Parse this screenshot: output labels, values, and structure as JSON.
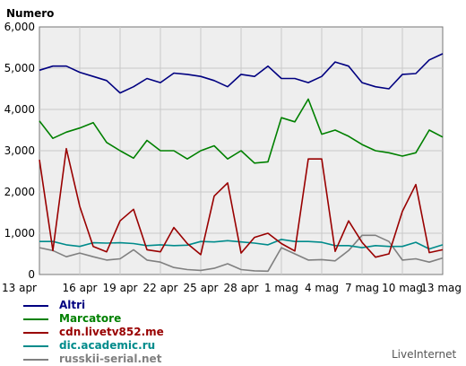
{
  "chart_data": {
    "type": "line",
    "ylabel": "Numero",
    "ylim": [
      0,
      6000
    ],
    "yticks": [
      0,
      1000,
      2000,
      3000,
      4000,
      5000,
      6000
    ],
    "ytick_labels": [
      "0",
      "1,000",
      "2,000",
      "3,000",
      "4,000",
      "5,000",
      "6,000"
    ],
    "x": [
      "13 apr",
      "14 apr",
      "15 apr",
      "16 apr",
      "17 apr",
      "18 apr",
      "19 apr",
      "20 apr",
      "21 apr",
      "22 apr",
      "23 apr",
      "24 apr",
      "25 apr",
      "26 apr",
      "27 apr",
      "28 apr",
      "29 apr",
      "30 apr",
      "1 mag",
      "2 mag",
      "3 mag",
      "4 mag",
      "5 mag",
      "6 mag",
      "7 mag",
      "8 mag",
      "9 mag",
      "10 mag",
      "11 mag",
      "12 mag",
      "13 mag"
    ],
    "xtick_labels": [
      "13 apr",
      "16 apr",
      "19 apr",
      "22 apr",
      "25 apr",
      "28 apr",
      "1 mag",
      "4 mag",
      "7 mag",
      "10 mag",
      "13 mag"
    ],
    "xtick_indices": [
      0,
      3,
      6,
      9,
      12,
      15,
      18,
      21,
      24,
      27,
      30
    ],
    "grid": true,
    "legend_position": "bottom-left",
    "series": [
      {
        "name": "Altri",
        "color": "#000080",
        "values": [
          4950,
          5050,
          5050,
          4900,
          4800,
          4700,
          4400,
          4550,
          4750,
          4650,
          4880,
          4850,
          4800,
          4700,
          4550,
          4850,
          4800,
          5050,
          4750,
          4750,
          4650,
          4800,
          5150,
          5050,
          4650,
          4550,
          4500,
          4850,
          4870,
          5200,
          5350
        ]
      },
      {
        "name": "Marcatore",
        "color": "#008000",
        "values": [
          3720,
          3300,
          3450,
          3550,
          3680,
          3200,
          3000,
          2820,
          3250,
          3000,
          3000,
          2800,
          3000,
          3120,
          2800,
          3000,
          2700,
          2730,
          3800,
          3700,
          4250,
          3400,
          3500,
          3350,
          3150,
          3000,
          2950,
          2870,
          2950,
          3500,
          3330
        ]
      },
      {
        "name": "cdn.livetv852.me",
        "color": "#990000",
        "values": [
          2780,
          580,
          3050,
          1650,
          680,
          550,
          1300,
          1580,
          600,
          550,
          1140,
          750,
          480,
          1900,
          2220,
          520,
          900,
          1000,
          750,
          570,
          2800,
          2800,
          560,
          1300,
          780,
          420,
          500,
          1530,
          2180,
          530,
          600
        ]
      },
      {
        "name": "dic.academic.ru",
        "color": "#008b8b",
        "values": [
          800,
          800,
          720,
          680,
          770,
          760,
          770,
          750,
          700,
          720,
          700,
          710,
          800,
          790,
          820,
          790,
          760,
          720,
          850,
          800,
          800,
          780,
          700,
          700,
          650,
          700,
          680,
          680,
          780,
          620,
          720
        ]
      },
      {
        "name": "russkii-serial.net",
        "color": "#808080",
        "values": [
          650,
          580,
          430,
          520,
          430,
          350,
          380,
          600,
          350,
          300,
          170,
          120,
          100,
          150,
          260,
          120,
          90,
          80,
          650,
          500,
          350,
          360,
          330,
          580,
          950,
          950,
          800,
          350,
          380,
          300,
          400
        ]
      }
    ]
  },
  "brand": "LiveInternet"
}
